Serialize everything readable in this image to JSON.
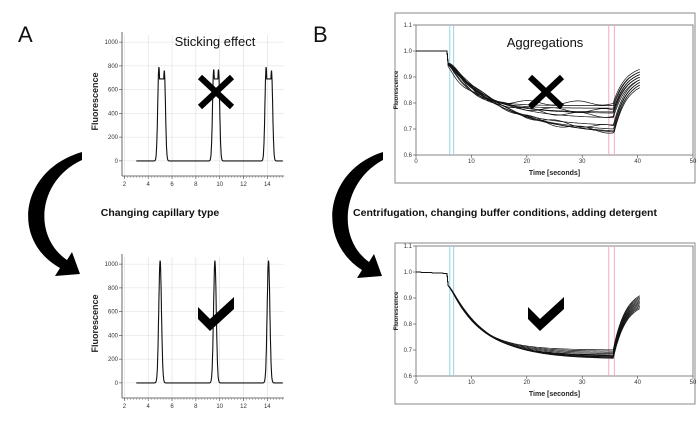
{
  "panels": {
    "a": "A",
    "b": "B"
  },
  "captions": {
    "left": "Changing capillary type",
    "right": "Centrifugation, changing buffer conditions, adding detergent"
  },
  "chart_data": [
    {
      "id": "a-top",
      "type": "line",
      "title": "Sticking effect",
      "mark": "cross",
      "ylabel": "Fluorescence",
      "xlabel": "",
      "xlim": [
        1.8,
        15.4
      ],
      "ylim": [
        -60,
        1060
      ],
      "xticks": [
        "2",
        "4",
        "6",
        "8",
        "10",
        "12",
        "14"
      ],
      "yticks": [
        "0",
        "200",
        "400",
        "600",
        "800",
        "1000"
      ],
      "peaks": [
        {
          "x": [
            4.9,
            5.35
          ],
          "y": [
            790,
            760
          ]
        },
        {
          "x": [
            9.5,
            9.9
          ],
          "y": [
            770,
            770
          ]
        },
        {
          "x": [
            13.9,
            14.35
          ],
          "y": [
            790,
            760
          ]
        }
      ]
    },
    {
      "id": "a-bottom",
      "type": "line",
      "title": "",
      "mark": "check",
      "ylabel": "Fluorescence",
      "xlabel": "",
      "xlim": [
        1.8,
        15.4
      ],
      "ylim": [
        -60,
        1060
      ],
      "xticks": [
        "2",
        "4",
        "6",
        "8",
        "10",
        "12",
        "14"
      ],
      "yticks": [
        "0",
        "200",
        "400",
        "600",
        "800",
        "1000"
      ],
      "peaks": [
        {
          "x": [
            5.0
          ],
          "y": [
            1030
          ]
        },
        {
          "x": [
            9.6
          ],
          "y": [
            1030
          ]
        },
        {
          "x": [
            14.1
          ],
          "y": [
            1030
          ]
        }
      ]
    },
    {
      "id": "b-top",
      "type": "line",
      "title": "Aggregations",
      "mark": "cross",
      "ylabel": "Fluorescence",
      "xlabel": "Time [seconds]",
      "xlim": [
        0,
        50
      ],
      "ylim": [
        0.6,
        1.1
      ],
      "xticks": [
        "0",
        "10",
        "20",
        "30",
        "40",
        "50"
      ],
      "yticks": [
        "0.6",
        "0.7",
        "0.8",
        "0.9",
        "1.0",
        "1.1"
      ],
      "on_time": 5.7,
      "off_time": 35.6,
      "end_time": 40.5,
      "plateaus": [
        0.8,
        0.79,
        0.78,
        0.77,
        0.765,
        0.76,
        0.75,
        0.74,
        0.71,
        0.7,
        0.69,
        0.68,
        0.675,
        0.67
      ],
      "recover_to": [
        0.93,
        0.92,
        0.92,
        0.91,
        0.91,
        0.9,
        0.9,
        0.89,
        0.89,
        0.88,
        0.88,
        0.87,
        0.87,
        0.86
      ],
      "cursor_colors": {
        "blue": "#8ecfe0",
        "pink": "#f2a3b8"
      }
    },
    {
      "id": "b-bottom",
      "type": "line",
      "title": "",
      "mark": "check",
      "ylabel": "Fluorescence",
      "xlabel": "Time [seconds]",
      "xlim": [
        0,
        50
      ],
      "ylim": [
        0.6,
        1.1
      ],
      "xticks": [
        "0",
        "10",
        "20",
        "30",
        "40",
        "50"
      ],
      "yticks": [
        "0.6",
        "0.7",
        "0.8",
        "0.9",
        "1.0",
        "1.1"
      ],
      "on_time": 5.7,
      "off_time": 35.6,
      "end_time": 40.5,
      "plateaus": [
        0.7,
        0.695,
        0.69,
        0.685,
        0.68,
        0.678,
        0.675,
        0.672,
        0.67,
        0.668,
        0.665
      ],
      "recover_to": [
        0.91,
        0.905,
        0.9,
        0.895,
        0.89,
        0.885,
        0.88,
        0.875,
        0.87,
        0.865,
        0.86
      ],
      "cursor_colors": {
        "blue": "#8ecfe0",
        "pink": "#f2a3b8"
      }
    }
  ]
}
